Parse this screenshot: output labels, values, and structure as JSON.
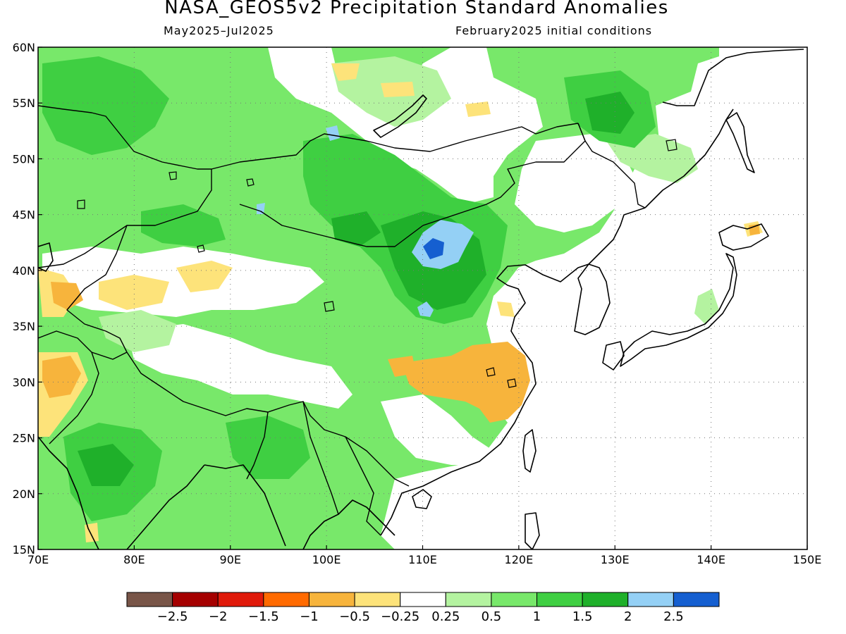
{
  "title": "NASA_GEOS5v2 Precipitation Standard Anomalies",
  "subtitle_left": "May2025–Jul2025",
  "subtitle_right": "February2025 initial conditions",
  "map": {
    "lon_range": [
      70,
      150
    ],
    "lat_range": [
      15,
      60
    ],
    "lon_ticks": [
      "70E",
      "80E",
      "90E",
      "100E",
      "110E",
      "120E",
      "130E",
      "140E",
      "150E"
    ],
    "lat_ticks": [
      "15N",
      "20N",
      "25N",
      "30N",
      "35N",
      "40N",
      "45N",
      "50N",
      "55N",
      "60N"
    ],
    "grid": "dotted"
  },
  "colorbar": {
    "colors": [
      "#785548",
      "#a50000",
      "#e01a0a",
      "#ff6a00",
      "#f7b43c",
      "#fde37a",
      "#ffffff",
      "#b4f3a0",
      "#78e86a",
      "#3fcf42",
      "#1fb02a",
      "#94d0f5",
      "#155fd0"
    ],
    "labels": [
      "−2.5",
      "−2",
      "−1.5",
      "−1",
      "−0.5",
      "−0.25",
      "0.25",
      "0.5",
      "1",
      "1.5",
      "2",
      "2.5"
    ]
  }
}
